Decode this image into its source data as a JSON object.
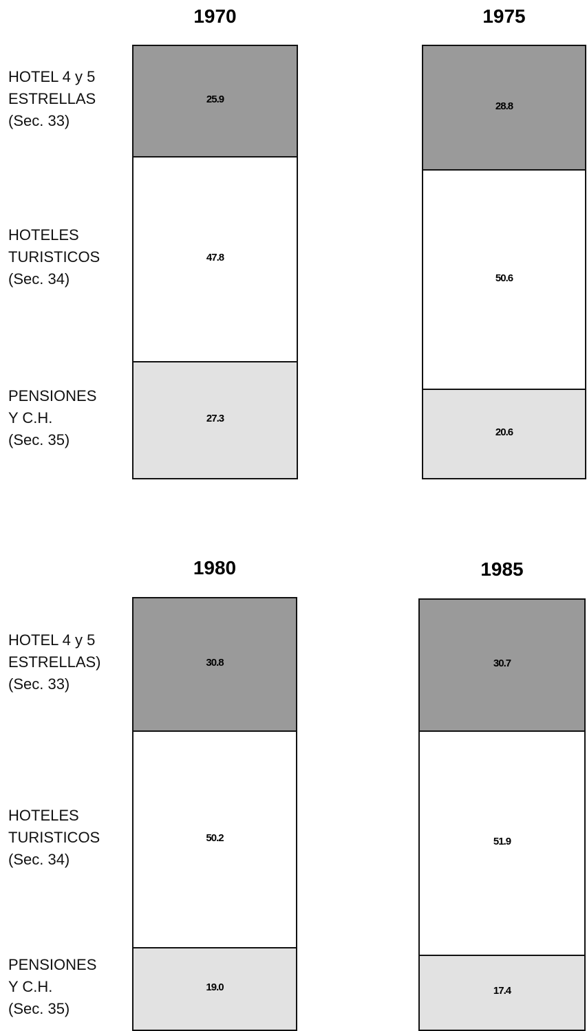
{
  "chart_data": [
    {
      "type": "bar",
      "title": "1970",
      "series": [
        {
          "name": "HOTEL 4 y 5\nESTRELLAS\n(Sec. 33)",
          "color": "#9a9a9a",
          "values": [
            25.9
          ]
        },
        {
          "name": "HOTELES\nTURISTICOS\n(Sec. 34)",
          "color": "#ffffff",
          "values": [
            47.8
          ]
        },
        {
          "name": "PENSIONES\nY C.H.\n(Sec. 35)",
          "color": "#e2e2e2",
          "values": [
            27.3
          ]
        }
      ]
    },
    {
      "type": "bar",
      "title": "1975",
      "series": [
        {
          "color": "#9a9a9a",
          "values": [
            28.8
          ]
        },
        {
          "color": "#ffffff",
          "values": [
            50.6
          ]
        },
        {
          "color": "#e2e2e2",
          "values": [
            20.6
          ]
        }
      ]
    },
    {
      "type": "bar",
      "title": "1980",
      "series": [
        {
          "name": "HOTEL 4 y 5\nESTRELLAS)\n(Sec. 33)",
          "color": "#9a9a9a",
          "values": [
            30.8
          ]
        },
        {
          "name": "HOTELES\nTURISTICOS\n(Sec. 34)",
          "color": "#ffffff",
          "values": [
            50.2
          ]
        },
        {
          "name": "PENSIONES\nY C.H.\n(Sec. 35)",
          "color": "#e2e2e2",
          "values": [
            19
          ],
          "value_labels": [
            "19.0"
          ]
        }
      ]
    },
    {
      "type": "bar",
      "title": "1985",
      "series": [
        {
          "color": "#9a9a9a",
          "values": [
            30.7
          ]
        },
        {
          "color": "#ffffff",
          "values": [
            51.9
          ]
        },
        {
          "color": "#e2e2e2",
          "values": [
            17.4
          ]
        }
      ]
    }
  ]
}
